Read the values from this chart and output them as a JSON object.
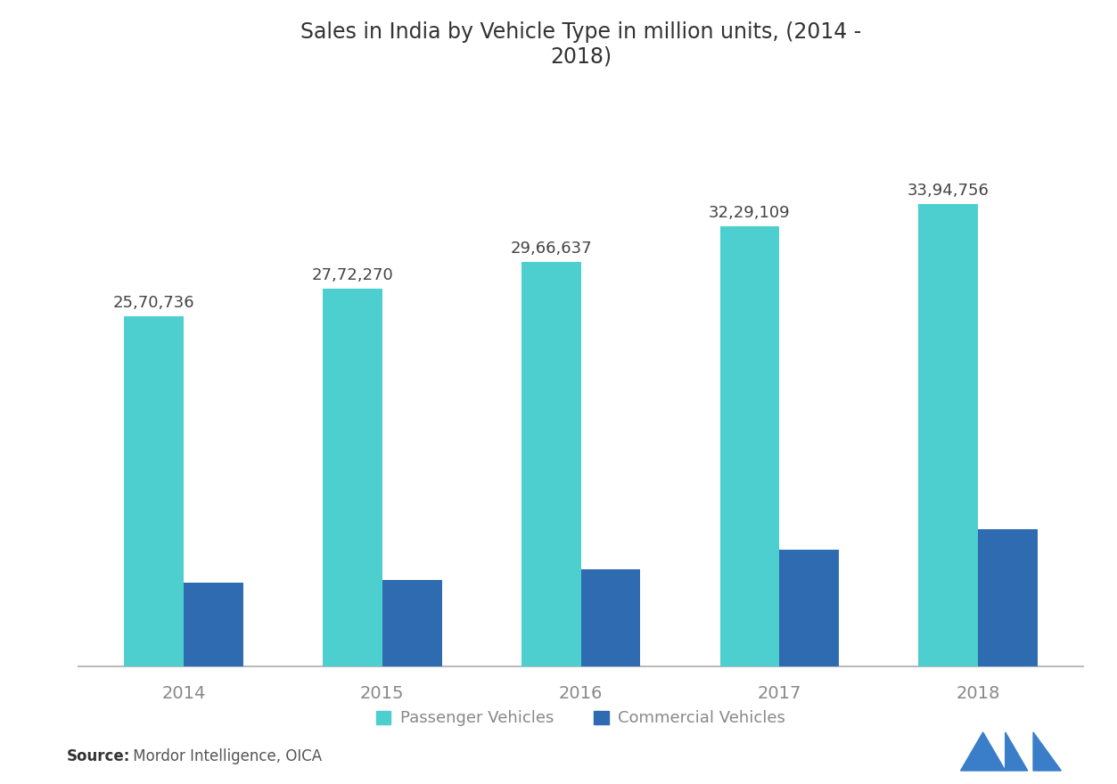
{
  "title": "Sales in India by Vehicle Type in million units, (2014 -\n2018)",
  "years": [
    "2014",
    "2015",
    "2016",
    "2017",
    "2018"
  ],
  "passenger_vehicles": [
    2570736,
    2772270,
    2966637,
    3229109,
    3394756
  ],
  "commercial_vehicles": [
    614948,
    636296,
    714232,
    857851,
    1007311
  ],
  "passenger_labels": [
    "25,70,736",
    "27,72,270",
    "29,66,637",
    "32,29,109",
    "33,94,756"
  ],
  "passenger_color": "#4ECFCF",
  "commercial_color": "#2F6BB0",
  "background_color": "#FFFFFF",
  "title_fontsize": 17,
  "label_fontsize": 13,
  "tick_fontsize": 14,
  "legend_fontsize": 13,
  "source_bold": "Source:",
  "source_text": " Mordor Intelligence, OICA",
  "legend_passenger": "Passenger Vehicles",
  "legend_commercial": "Commercial Vehicles",
  "ylim_max": 4200000
}
